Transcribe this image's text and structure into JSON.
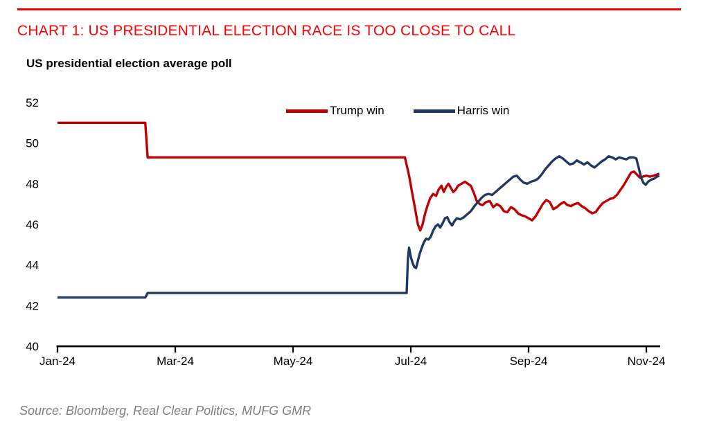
{
  "page": {
    "heading": "CHART 1: US PRESIDENTIAL ELECTION RACE IS TOO CLOSE TO CALL",
    "source_note": "Source: Bloomberg, Real Clear Politics, MUFG GMR"
  },
  "colors": {
    "heading_red": "#ff0000",
    "trump_red": "#c00000",
    "harris_navy": "#1f3864",
    "axis_black": "#000000",
    "source_gray": "#7f7f7f",
    "background": "#ffffff"
  },
  "chart_data": {
    "type": "line",
    "title": "US presidential election average poll",
    "x_unit": "months since Jan-24",
    "x_axis": {
      "tick_labels": [
        "Jan-24",
        "Mar-24",
        "May-24",
        "Jul-24",
        "Sep-24",
        "Nov-24"
      ],
      "tick_months": [
        0,
        2,
        4,
        6,
        8,
        10
      ]
    },
    "y_axis": {
      "ticks": [
        40,
        42,
        44,
        46,
        48,
        50,
        52
      ],
      "range": [
        40,
        52
      ]
    },
    "grid": false,
    "legend_position": "top-center",
    "legend": [
      {
        "name": "Trump win",
        "color": "#c00000"
      },
      {
        "name": "Harris win",
        "color": "#1f3864"
      }
    ],
    "series": [
      {
        "name": "Trump win",
        "color": "#c00000",
        "points": [
          [
            0,
            51.0
          ],
          [
            1.49,
            51.0
          ],
          [
            1.53,
            49.3
          ],
          [
            5.9,
            49.3
          ],
          [
            5.97,
            48.4
          ],
          [
            6.02,
            47.6
          ],
          [
            6.07,
            46.8
          ],
          [
            6.12,
            46.0
          ],
          [
            6.16,
            45.7
          ],
          [
            6.2,
            46.0
          ],
          [
            6.24,
            46.5
          ],
          [
            6.28,
            46.9
          ],
          [
            6.33,
            47.3
          ],
          [
            6.38,
            47.5
          ],
          [
            6.43,
            47.4
          ],
          [
            6.47,
            47.7
          ],
          [
            6.52,
            47.9
          ],
          [
            6.56,
            47.6
          ],
          [
            6.6,
            47.85
          ],
          [
            6.64,
            48.0
          ],
          [
            6.68,
            47.8
          ],
          [
            6.72,
            47.6
          ],
          [
            6.76,
            47.7
          ],
          [
            6.8,
            47.9
          ],
          [
            6.86,
            48.0
          ],
          [
            6.92,
            48.1
          ],
          [
            6.97,
            48.0
          ],
          [
            7.02,
            47.9
          ],
          [
            7.07,
            47.55
          ],
          [
            7.12,
            47.15
          ],
          [
            7.17,
            47.0
          ],
          [
            7.22,
            46.95
          ],
          [
            7.28,
            47.1
          ],
          [
            7.34,
            47.15
          ],
          [
            7.4,
            46.85
          ],
          [
            7.46,
            47.0
          ],
          [
            7.52,
            46.9
          ],
          [
            7.58,
            46.65
          ],
          [
            7.64,
            46.6
          ],
          [
            7.7,
            46.85
          ],
          [
            7.76,
            46.75
          ],
          [
            7.82,
            46.55
          ],
          [
            7.88,
            46.45
          ],
          [
            7.94,
            46.4
          ],
          [
            8.0,
            46.3
          ],
          [
            8.06,
            46.2
          ],
          [
            8.12,
            46.4
          ],
          [
            8.18,
            46.7
          ],
          [
            8.24,
            47.0
          ],
          [
            8.3,
            47.2
          ],
          [
            8.36,
            47.1
          ],
          [
            8.42,
            46.75
          ],
          [
            8.48,
            46.85
          ],
          [
            8.54,
            47.0
          ],
          [
            8.6,
            47.1
          ],
          [
            8.66,
            46.95
          ],
          [
            8.72,
            46.9
          ],
          [
            8.78,
            47.0
          ],
          [
            8.84,
            47.05
          ],
          [
            8.9,
            46.9
          ],
          [
            8.96,
            46.8
          ],
          [
            9.02,
            46.65
          ],
          [
            9.08,
            46.55
          ],
          [
            9.14,
            46.6
          ],
          [
            9.2,
            46.85
          ],
          [
            9.26,
            47.05
          ],
          [
            9.32,
            47.15
          ],
          [
            9.38,
            47.25
          ],
          [
            9.44,
            47.3
          ],
          [
            9.5,
            47.45
          ],
          [
            9.56,
            47.7
          ],
          [
            9.62,
            47.95
          ],
          [
            9.68,
            48.25
          ],
          [
            9.74,
            48.55
          ],
          [
            9.79,
            48.6
          ],
          [
            9.84,
            48.45
          ],
          [
            9.89,
            48.3
          ],
          [
            9.94,
            48.35
          ],
          [
            10.0,
            48.4
          ],
          [
            10.06,
            48.35
          ],
          [
            10.12,
            48.4
          ],
          [
            10.18,
            48.45
          ],
          [
            10.22,
            48.5
          ]
        ]
      },
      {
        "name": "Harris win",
        "color": "#1f3864",
        "points": [
          [
            0,
            42.4
          ],
          [
            1.49,
            42.4
          ],
          [
            1.53,
            42.62
          ],
          [
            5.93,
            42.62
          ],
          [
            5.95,
            44.3
          ],
          [
            5.97,
            44.85
          ],
          [
            6.0,
            44.4
          ],
          [
            6.03,
            44.1
          ],
          [
            6.06,
            43.9
          ],
          [
            6.09,
            43.85
          ],
          [
            6.12,
            44.2
          ],
          [
            6.15,
            44.55
          ],
          [
            6.18,
            44.8
          ],
          [
            6.22,
            45.1
          ],
          [
            6.26,
            45.3
          ],
          [
            6.3,
            45.25
          ],
          [
            6.34,
            45.4
          ],
          [
            6.38,
            45.7
          ],
          [
            6.42,
            45.9
          ],
          [
            6.46,
            46.0
          ],
          [
            6.5,
            45.85
          ],
          [
            6.54,
            46.05
          ],
          [
            6.58,
            46.3
          ],
          [
            6.62,
            46.35
          ],
          [
            6.66,
            46.1
          ],
          [
            6.7,
            45.95
          ],
          [
            6.74,
            46.15
          ],
          [
            6.78,
            46.3
          ],
          [
            6.84,
            46.25
          ],
          [
            6.9,
            46.35
          ],
          [
            6.96,
            46.5
          ],
          [
            7.02,
            46.65
          ],
          [
            7.08,
            46.9
          ],
          [
            7.14,
            47.1
          ],
          [
            7.2,
            47.3
          ],
          [
            7.26,
            47.45
          ],
          [
            7.32,
            47.5
          ],
          [
            7.38,
            47.45
          ],
          [
            7.44,
            47.6
          ],
          [
            7.5,
            47.75
          ],
          [
            7.56,
            47.9
          ],
          [
            7.62,
            48.05
          ],
          [
            7.68,
            48.2
          ],
          [
            7.74,
            48.35
          ],
          [
            7.8,
            48.4
          ],
          [
            7.86,
            48.2
          ],
          [
            7.92,
            48.05
          ],
          [
            7.98,
            48.0
          ],
          [
            8.04,
            48.1
          ],
          [
            8.1,
            48.15
          ],
          [
            8.16,
            48.25
          ],
          [
            8.22,
            48.45
          ],
          [
            8.28,
            48.7
          ],
          [
            8.34,
            48.9
          ],
          [
            8.4,
            49.1
          ],
          [
            8.46,
            49.25
          ],
          [
            8.52,
            49.35
          ],
          [
            8.58,
            49.25
          ],
          [
            8.64,
            49.1
          ],
          [
            8.7,
            48.95
          ],
          [
            8.76,
            49.0
          ],
          [
            8.82,
            49.15
          ],
          [
            8.88,
            49.05
          ],
          [
            8.94,
            48.95
          ],
          [
            9.0,
            49.05
          ],
          [
            9.06,
            48.9
          ],
          [
            9.12,
            48.8
          ],
          [
            9.18,
            48.95
          ],
          [
            9.24,
            49.1
          ],
          [
            9.3,
            49.2
          ],
          [
            9.36,
            49.35
          ],
          [
            9.42,
            49.3
          ],
          [
            9.48,
            49.2
          ],
          [
            9.54,
            49.3
          ],
          [
            9.6,
            49.25
          ],
          [
            9.66,
            49.2
          ],
          [
            9.72,
            49.3
          ],
          [
            9.78,
            49.3
          ],
          [
            9.83,
            49.25
          ],
          [
            9.87,
            48.8
          ],
          [
            9.91,
            48.3
          ],
          [
            9.95,
            48.05
          ],
          [
            9.99,
            47.95
          ],
          [
            10.03,
            48.1
          ],
          [
            10.08,
            48.2
          ],
          [
            10.13,
            48.25
          ],
          [
            10.18,
            48.35
          ],
          [
            10.22,
            48.4
          ]
        ]
      }
    ]
  }
}
